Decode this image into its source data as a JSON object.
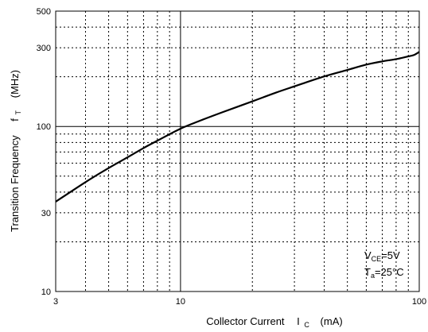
{
  "chart_data": {
    "type": "line",
    "title": "",
    "xlabel": "Collector Current",
    "xlabel_symbol": "I",
    "xlabel_symbol_sub": "C",
    "xlabel_unit": "(mA)",
    "ylabel": "Transition Frequency",
    "ylabel_symbol": "f",
    "ylabel_symbol_sub": "T",
    "ylabel_unit": "(MHz)",
    "x_scale": "log",
    "y_scale": "log",
    "xlim": [
      3,
      100
    ],
    "ylim": [
      10,
      500
    ],
    "x_ticks": [
      {
        "value": 3,
        "label": "3"
      },
      {
        "value": 10,
        "label": "10"
      },
      {
        "value": 100,
        "label": "100"
      }
    ],
    "y_ticks": [
      {
        "value": 10,
        "label": "10"
      },
      {
        "value": 30,
        "label": "30"
      },
      {
        "value": 100,
        "label": "100"
      },
      {
        "value": 300,
        "label": "300"
      },
      {
        "value": 500,
        "label": "500"
      }
    ],
    "x_minor_grid": [
      4,
      5,
      6,
      7,
      8,
      9,
      20,
      30,
      40,
      50,
      60,
      70,
      80,
      90
    ],
    "y_minor_grid": [
      20,
      30,
      40,
      50,
      60,
      70,
      80,
      90,
      200,
      300,
      400
    ],
    "x_major_grid": [
      10
    ],
    "y_major_grid": [
      100
    ],
    "grid": true,
    "series": [
      {
        "x": [
          3,
          4,
          5,
          6,
          7,
          8,
          10,
          12,
          15,
          20,
          25,
          30,
          40,
          50,
          60,
          70,
          80,
          90,
          95,
          100
        ],
        "y": [
          35,
          46,
          56,
          65,
          74,
          82,
          97,
          108,
          122,
          142,
          160,
          175,
          201,
          220,
          237,
          248,
          256,
          266,
          271,
          283
        ]
      }
    ],
    "annotations": [
      {
        "main": "V",
        "sub": "CE",
        "rest": "=5V"
      },
      {
        "main": "T",
        "sub": "a",
        "rest": "=25°C"
      }
    ]
  },
  "colors": {
    "line": "#000000",
    "grid": "#000000",
    "background": "#ffffff"
  }
}
